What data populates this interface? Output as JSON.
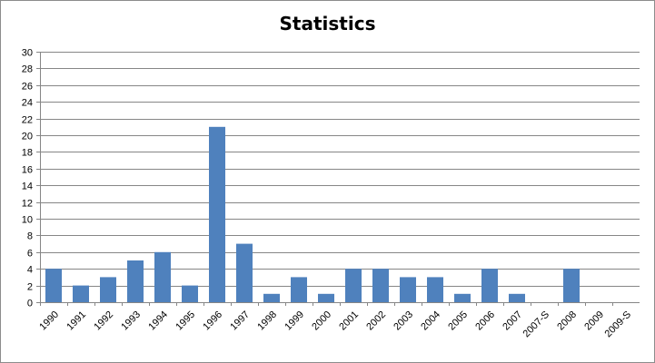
{
  "chart_data": {
    "type": "bar",
    "title": "Statistics",
    "xlabel": "",
    "ylabel": "",
    "categories": [
      "1990",
      "1991",
      "1992",
      "1993",
      "1994",
      "1995",
      "1996",
      "1997",
      "1998",
      "1999",
      "2000",
      "2001",
      "2002",
      "2003",
      "2004",
      "2005",
      "2006",
      "2007",
      "2007-S",
      "2008",
      "2009",
      "2009-S"
    ],
    "values": [
      4,
      2,
      3,
      5,
      6,
      2,
      21,
      7,
      1,
      3,
      1,
      4,
      4,
      3,
      3,
      1,
      4,
      1,
      0,
      4,
      0,
      0
    ],
    "ylim": [
      0,
      30
    ],
    "yticks": [
      "0",
      "2",
      "4",
      "6",
      "8",
      "10",
      "12",
      "14",
      "16",
      "18",
      "20",
      "22",
      "24",
      "26",
      "28",
      "30"
    ],
    "grid": true,
    "legend": "none",
    "bar_color": "#4f81bd",
    "gridline_color": "#868686"
  }
}
